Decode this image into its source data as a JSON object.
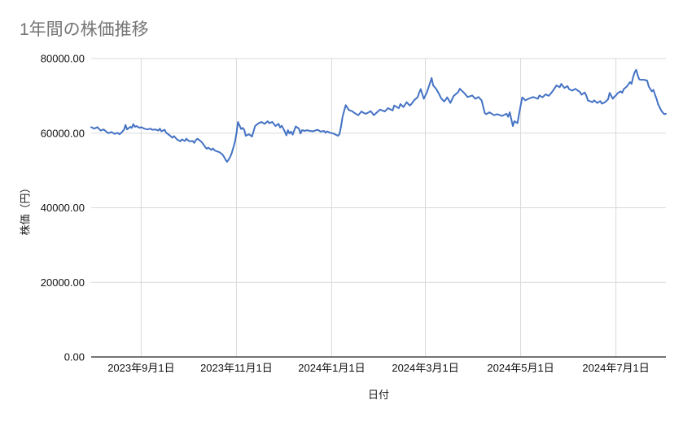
{
  "page": {
    "background": "#ffffff"
  },
  "header": {
    "title": "1年間の株価推移"
  },
  "chart_data": {
    "type": "line",
    "title": "1年間の株価推移",
    "xlabel": "日付",
    "ylabel": "株価（円）",
    "legend_position": "none",
    "grid": true,
    "ylim": [
      0,
      80000
    ],
    "x_domain": [
      "2023-07-31",
      "2024-08-02"
    ],
    "line_color": "#4472c4",
    "grid_color": "#d9d9d9",
    "axis_color": "#212121",
    "tick_label_color": "#111111",
    "title_color": "#757575",
    "y_ticks": [
      {
        "label": "80000.00",
        "value": 80000
      },
      {
        "label": "60000.00",
        "value": 60000
      },
      {
        "label": "40000.00",
        "value": 40000
      },
      {
        "label": "20000.00",
        "value": 20000
      },
      {
        "label": "0.00",
        "value": 0
      }
    ],
    "x_ticks": [
      {
        "label": "2023年9月1日",
        "date": "2023-09-01"
      },
      {
        "label": "2023年11月1日",
        "date": "2023-11-01"
      },
      {
        "label": "2024年1月1日",
        "date": "2024-01-01"
      },
      {
        "label": "2024年3月1日",
        "date": "2024-03-01"
      },
      {
        "label": "2024年5月1日",
        "date": "2024-05-01"
      },
      {
        "label": "2024年7月1日",
        "date": "2024-07-01"
      }
    ],
    "points": [
      [
        "2023-07-31",
        61600
      ],
      [
        "2023-08-02",
        61200
      ],
      [
        "2023-08-04",
        61600
      ],
      [
        "2023-08-06",
        60700
      ],
      [
        "2023-08-08",
        61000
      ],
      [
        "2023-08-10",
        60300
      ],
      [
        "2023-08-11",
        60000
      ],
      [
        "2023-08-13",
        60300
      ],
      [
        "2023-08-15",
        59800
      ],
      [
        "2023-08-17",
        60100
      ],
      [
        "2023-08-18",
        59700
      ],
      [
        "2023-08-19",
        60000
      ],
      [
        "2023-08-21",
        60900
      ],
      [
        "2023-08-22",
        62200
      ],
      [
        "2023-08-23",
        61000
      ],
      [
        "2023-08-25",
        61700
      ],
      [
        "2023-08-26",
        61400
      ],
      [
        "2023-08-27",
        62400
      ],
      [
        "2023-08-28",
        61700
      ],
      [
        "2023-08-29",
        61900
      ],
      [
        "2023-08-31",
        61400
      ],
      [
        "2023-09-01",
        61600
      ],
      [
        "2023-09-03",
        61200
      ],
      [
        "2023-09-05",
        61000
      ],
      [
        "2023-09-07",
        61200
      ],
      [
        "2023-09-08",
        60900
      ],
      [
        "2023-09-10",
        61000
      ],
      [
        "2023-09-12",
        60700
      ],
      [
        "2023-09-13",
        61200
      ],
      [
        "2023-09-14",
        60500
      ],
      [
        "2023-09-16",
        60900
      ],
      [
        "2023-09-17",
        60100
      ],
      [
        "2023-09-19",
        59500
      ],
      [
        "2023-09-21",
        58800
      ],
      [
        "2023-09-22",
        59200
      ],
      [
        "2023-09-24",
        58300
      ],
      [
        "2023-09-26",
        57800
      ],
      [
        "2023-09-27",
        58300
      ],
      [
        "2023-09-29",
        57900
      ],
      [
        "2023-09-30",
        58500
      ],
      [
        "2023-10-01",
        58100
      ],
      [
        "2023-10-02",
        57800
      ],
      [
        "2023-10-04",
        57900
      ],
      [
        "2023-10-05",
        57400
      ],
      [
        "2023-10-06",
        58100
      ],
      [
        "2023-10-07",
        58500
      ],
      [
        "2023-10-09",
        57900
      ],
      [
        "2023-10-10",
        57500
      ],
      [
        "2023-10-12",
        56300
      ],
      [
        "2023-10-13",
        55800
      ],
      [
        "2023-10-14",
        56100
      ],
      [
        "2023-10-16",
        55500
      ],
      [
        "2023-10-17",
        55900
      ],
      [
        "2023-10-18",
        55400
      ],
      [
        "2023-10-19",
        55200
      ],
      [
        "2023-10-21",
        54900
      ],
      [
        "2023-10-23",
        54300
      ],
      [
        "2023-10-24",
        53700
      ],
      [
        "2023-10-25",
        52900
      ],
      [
        "2023-10-26",
        52300
      ],
      [
        "2023-10-27",
        52900
      ],
      [
        "2023-10-28",
        53600
      ],
      [
        "2023-10-29",
        54700
      ],
      [
        "2023-10-30",
        56100
      ],
      [
        "2023-10-31",
        57600
      ],
      [
        "2023-11-01",
        59800
      ],
      [
        "2023-11-02",
        63000
      ],
      [
        "2023-11-04",
        61100
      ],
      [
        "2023-11-05",
        61400
      ],
      [
        "2023-11-06",
        60900
      ],
      [
        "2023-11-07",
        59300
      ],
      [
        "2023-11-09",
        59700
      ],
      [
        "2023-11-11",
        59100
      ],
      [
        "2023-11-13",
        61900
      ],
      [
        "2023-11-15",
        62600
      ],
      [
        "2023-11-17",
        63000
      ],
      [
        "2023-11-19",
        62500
      ],
      [
        "2023-11-21",
        63200
      ],
      [
        "2023-11-22",
        62700
      ],
      [
        "2023-11-24",
        63000
      ],
      [
        "2023-11-26",
        61900
      ],
      [
        "2023-11-28",
        62500
      ],
      [
        "2023-11-29",
        61500
      ],
      [
        "2023-11-30",
        62000
      ],
      [
        "2023-12-02",
        60400
      ],
      [
        "2023-12-03",
        59400
      ],
      [
        "2023-12-04",
        60800
      ],
      [
        "2023-12-05",
        59900
      ],
      [
        "2023-12-06",
        60400
      ],
      [
        "2023-12-07",
        59600
      ],
      [
        "2023-12-09",
        61800
      ],
      [
        "2023-12-11",
        61200
      ],
      [
        "2023-12-12",
        59900
      ],
      [
        "2023-12-13",
        60800
      ],
      [
        "2023-12-15",
        60600
      ],
      [
        "2023-12-16",
        60800
      ],
      [
        "2023-12-18",
        60600
      ],
      [
        "2023-12-20",
        60500
      ],
      [
        "2023-12-23",
        60900
      ],
      [
        "2023-12-25",
        60400
      ],
      [
        "2023-12-27",
        60600
      ],
      [
        "2023-12-28",
        60100
      ],
      [
        "2023-12-29",
        60500
      ],
      [
        "2023-12-31",
        60100
      ],
      [
        "2024-01-02",
        59900
      ],
      [
        "2024-01-04",
        59500
      ],
      [
        "2024-01-05",
        59300
      ],
      [
        "2024-01-06",
        59700
      ],
      [
        "2024-01-07",
        61900
      ],
      [
        "2024-01-08",
        64500
      ],
      [
        "2024-01-09",
        66000
      ],
      [
        "2024-01-10",
        67500
      ],
      [
        "2024-01-12",
        66200
      ],
      [
        "2024-01-14",
        65900
      ],
      [
        "2024-01-16",
        65300
      ],
      [
        "2024-01-18",
        64800
      ],
      [
        "2024-01-20",
        65800
      ],
      [
        "2024-01-22",
        65300
      ],
      [
        "2024-01-23",
        65200
      ],
      [
        "2024-01-26",
        65900
      ],
      [
        "2024-01-28",
        64800
      ],
      [
        "2024-01-30",
        65600
      ],
      [
        "2024-02-01",
        66300
      ],
      [
        "2024-02-04",
        65800
      ],
      [
        "2024-02-06",
        66700
      ],
      [
        "2024-02-09",
        66100
      ],
      [
        "2024-02-10",
        67400
      ],
      [
        "2024-02-13",
        66700
      ],
      [
        "2024-02-14",
        67800
      ],
      [
        "2024-02-16",
        67000
      ],
      [
        "2024-02-18",
        68300
      ],
      [
        "2024-02-20",
        67400
      ],
      [
        "2024-02-21",
        67800
      ],
      [
        "2024-02-23",
        68900
      ],
      [
        "2024-02-25",
        69600
      ],
      [
        "2024-02-26",
        70800
      ],
      [
        "2024-02-27",
        71800
      ],
      [
        "2024-02-29",
        69200
      ],
      [
        "2024-03-02",
        71000
      ],
      [
        "2024-03-04",
        73500
      ],
      [
        "2024-03-05",
        74800
      ],
      [
        "2024-03-06",
        72800
      ],
      [
        "2024-03-08",
        71800
      ],
      [
        "2024-03-10",
        70300
      ],
      [
        "2024-03-11",
        69400
      ],
      [
        "2024-03-13",
        68500
      ],
      [
        "2024-03-14",
        69000
      ],
      [
        "2024-03-15",
        69600
      ],
      [
        "2024-03-17",
        68100
      ],
      [
        "2024-03-19",
        69900
      ],
      [
        "2024-03-22",
        71000
      ],
      [
        "2024-03-23",
        71900
      ],
      [
        "2024-03-26",
        70700
      ],
      [
        "2024-03-28",
        69700
      ],
      [
        "2024-03-31",
        70100
      ],
      [
        "2024-04-02",
        69200
      ],
      [
        "2024-04-04",
        69700
      ],
      [
        "2024-04-06",
        68800
      ],
      [
        "2024-04-08",
        65400
      ],
      [
        "2024-04-09",
        65100
      ],
      [
        "2024-04-11",
        65600
      ],
      [
        "2024-04-14",
        64800
      ],
      [
        "2024-04-16",
        65100
      ],
      [
        "2024-04-19",
        64600
      ],
      [
        "2024-04-22",
        65200
      ],
      [
        "2024-04-23",
        64400
      ],
      [
        "2024-04-24",
        65600
      ],
      [
        "2024-04-26",
        61900
      ],
      [
        "2024-04-27",
        63200
      ],
      [
        "2024-04-29",
        62700
      ],
      [
        "2024-04-30",
        65200
      ],
      [
        "2024-05-02",
        69600
      ],
      [
        "2024-05-04",
        68800
      ],
      [
        "2024-05-06",
        69200
      ],
      [
        "2024-05-09",
        69700
      ],
      [
        "2024-05-12",
        69200
      ],
      [
        "2024-05-13",
        70100
      ],
      [
        "2024-05-15",
        69600
      ],
      [
        "2024-05-17",
        70400
      ],
      [
        "2024-05-19",
        70000
      ],
      [
        "2024-05-21",
        71000
      ],
      [
        "2024-05-24",
        72800
      ],
      [
        "2024-05-26",
        72300
      ],
      [
        "2024-05-27",
        73200
      ],
      [
        "2024-05-29",
        72100
      ],
      [
        "2024-05-31",
        72600
      ],
      [
        "2024-06-01",
        71800
      ],
      [
        "2024-06-03",
        71400
      ],
      [
        "2024-06-05",
        71900
      ],
      [
        "2024-06-08",
        71000
      ],
      [
        "2024-06-09",
        70300
      ],
      [
        "2024-06-11",
        70900
      ],
      [
        "2024-06-12",
        70100
      ],
      [
        "2024-06-13",
        68800
      ],
      [
        "2024-06-16",
        68300
      ],
      [
        "2024-06-17",
        68800
      ],
      [
        "2024-06-19",
        68100
      ],
      [
        "2024-06-21",
        68600
      ],
      [
        "2024-06-22",
        67900
      ],
      [
        "2024-06-24",
        68300
      ],
      [
        "2024-06-26",
        69100
      ],
      [
        "2024-06-27",
        70800
      ],
      [
        "2024-06-29",
        69200
      ],
      [
        "2024-06-30",
        69800
      ],
      [
        "2024-07-01",
        70100
      ],
      [
        "2024-07-02",
        70700
      ],
      [
        "2024-07-04",
        71200
      ],
      [
        "2024-07-05",
        70800
      ],
      [
        "2024-07-06",
        71800
      ],
      [
        "2024-07-08",
        72500
      ],
      [
        "2024-07-10",
        73700
      ],
      [
        "2024-07-11",
        73200
      ],
      [
        "2024-07-12",
        75000
      ],
      [
        "2024-07-13",
        76300
      ],
      [
        "2024-07-14",
        77000
      ],
      [
        "2024-07-15",
        75400
      ],
      [
        "2024-07-16",
        74400
      ],
      [
        "2024-07-17",
        74300
      ],
      [
        "2024-07-19",
        74300
      ],
      [
        "2024-07-21",
        74100
      ],
      [
        "2024-07-22",
        72500
      ],
      [
        "2024-07-24",
        71200
      ],
      [
        "2024-07-25",
        71600
      ],
      [
        "2024-07-26",
        70300
      ],
      [
        "2024-07-27",
        69200
      ],
      [
        "2024-07-28",
        67800
      ],
      [
        "2024-07-30",
        66100
      ],
      [
        "2024-07-31",
        65500
      ],
      [
        "2024-08-01",
        65100
      ],
      [
        "2024-08-02",
        65200
      ]
    ]
  }
}
